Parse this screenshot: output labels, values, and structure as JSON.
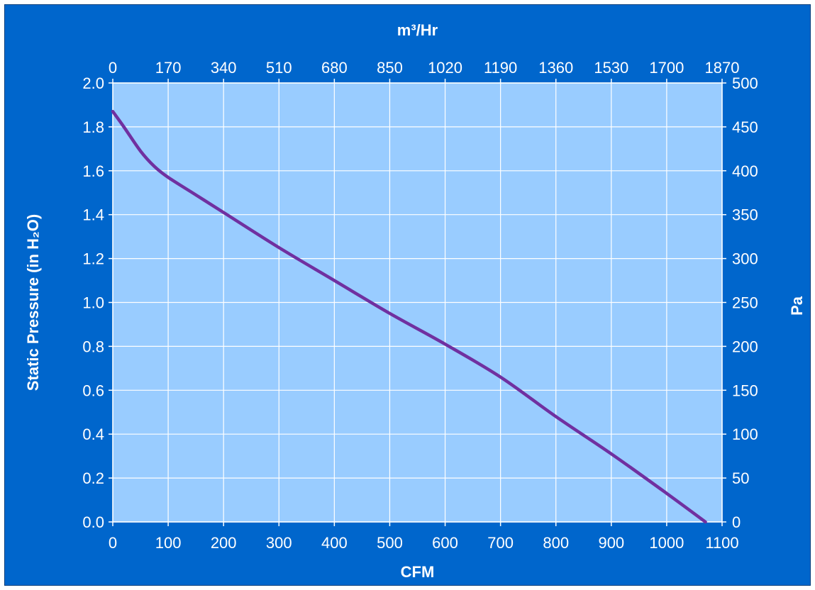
{
  "chart_data": {
    "type": "line",
    "title": "",
    "xlabel": "CFM",
    "ylabel": "Static Pressure (in H₂O)",
    "x2label": "m³/Hr",
    "y2label": "Pa",
    "xlim": [
      0,
      1100
    ],
    "ylim": [
      0,
      2.0
    ],
    "x2lim": [
      0,
      1870
    ],
    "y2lim": [
      0,
      500
    ],
    "x_ticks": [
      "0",
      "100",
      "200",
      "300",
      "400",
      "500",
      "600",
      "700",
      "800",
      "900",
      "1000",
      "1100"
    ],
    "y_ticks": [
      "0.0",
      "0.2",
      "0.4",
      "0.6",
      "0.8",
      "1.0",
      "1.2",
      "1.4",
      "1.6",
      "1.8",
      "2.0"
    ],
    "x2_ticks": [
      "0",
      "170",
      "340",
      "510",
      "680",
      "850",
      "1020",
      "1190",
      "1360",
      "1530",
      "1700",
      "1870"
    ],
    "y2_ticks": [
      "0",
      "50",
      "100",
      "150",
      "200",
      "250",
      "300",
      "350",
      "400",
      "450",
      "500"
    ],
    "grid": true,
    "series": [
      {
        "x": [
          0,
          20,
          50,
          75,
          100,
          150,
          200,
          300,
          400,
          500,
          600,
          700,
          800,
          900,
          1000,
          1070
        ],
        "y": [
          1.87,
          1.8,
          1.69,
          1.62,
          1.57,
          1.49,
          1.41,
          1.25,
          1.1,
          0.95,
          0.81,
          0.66,
          0.48,
          0.31,
          0.13,
          0.0
        ]
      }
    ],
    "colors": {
      "background": "#0066cc",
      "plot_area": "#99ccff",
      "grid": "#ffffff",
      "line": "#7030a0",
      "text": "#ffffff"
    }
  }
}
